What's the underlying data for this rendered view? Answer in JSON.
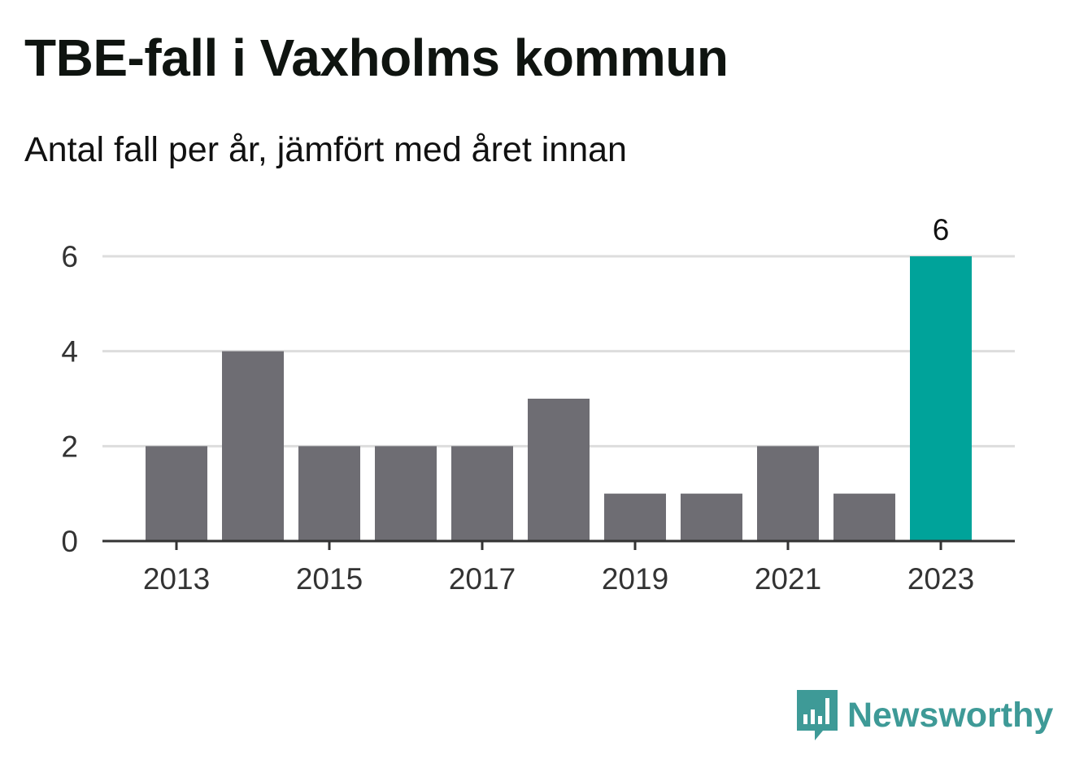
{
  "title": "TBE-fall i Vaxholms kommun",
  "subtitle": "Antal fall per år, jämfört med året innan",
  "brand": {
    "name": "Newsworthy",
    "icon": "bar-chart-speech-bubble-icon",
    "color": "#3e9a97"
  },
  "chart_data": {
    "type": "bar",
    "categories": [
      "2013",
      "2014",
      "2015",
      "2016",
      "2017",
      "2018",
      "2019",
      "2020",
      "2021",
      "2022",
      "2023"
    ],
    "values": [
      2,
      4,
      2,
      2,
      2,
      3,
      1,
      1,
      2,
      1,
      6
    ],
    "x_tick_labels": [
      "2013",
      "2015",
      "2017",
      "2019",
      "2021",
      "2023"
    ],
    "y_ticks": [
      0,
      2,
      4,
      6
    ],
    "ylim": [
      0,
      6
    ],
    "grid": true,
    "bar_color": "#6e6d73",
    "highlight_color": "#00a39a",
    "highlight_category": "2023",
    "data_labels": [
      {
        "category": "2023",
        "text": "6"
      }
    ]
  }
}
